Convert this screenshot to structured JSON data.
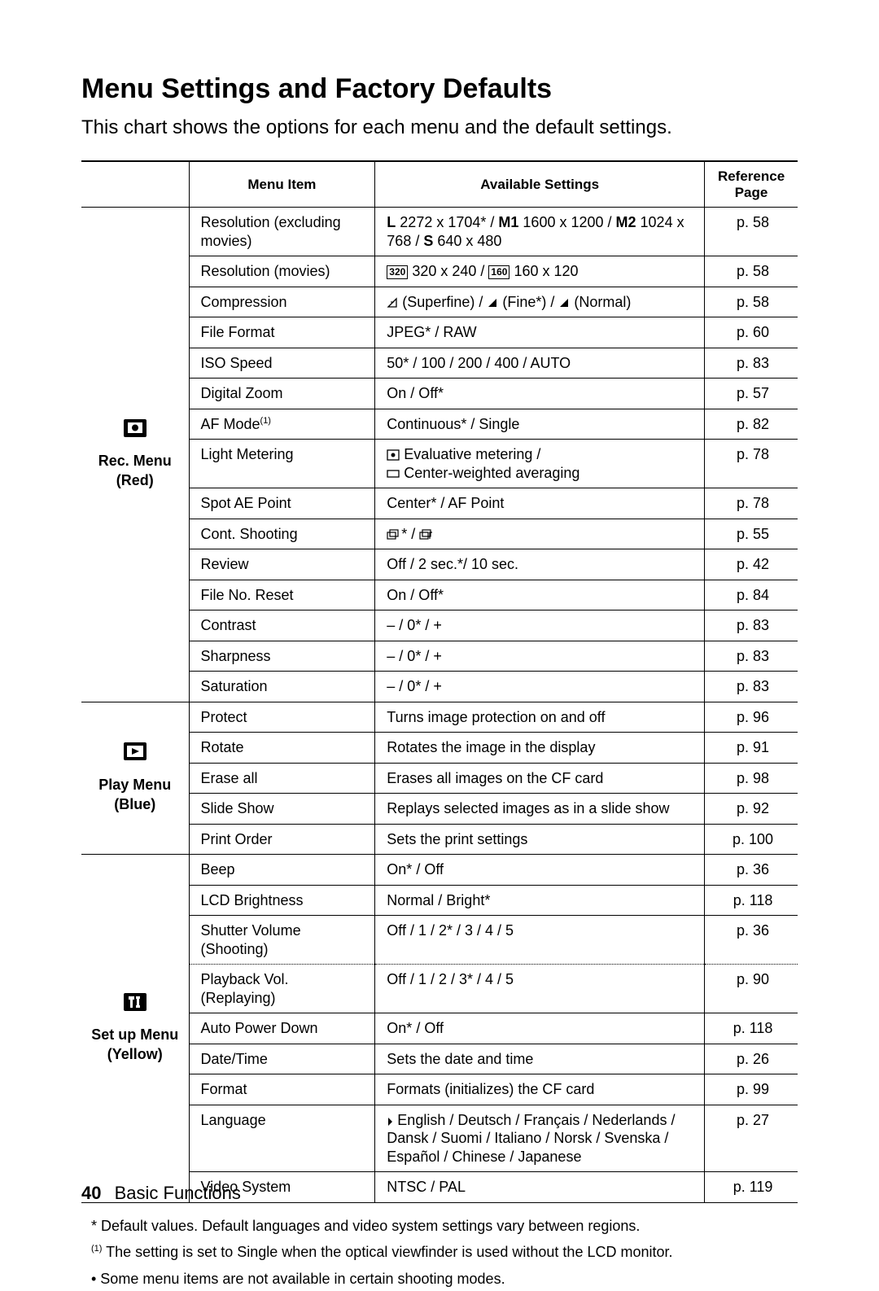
{
  "title": "Menu Settings and Factory Defaults",
  "subtitle": "This chart shows the options for each menu and the default settings.",
  "columns": {
    "blank": "",
    "menu_item": "Menu Item",
    "available": "Available Settings",
    "ref": "Reference Page"
  },
  "sections": [
    {
      "label_line1": "Rec. Menu",
      "label_line2": "(Red)",
      "icon": "camera",
      "rows": [
        {
          "item": "Resolution (excluding movies)",
          "setting_html": "<span class='res-bold'>L</span> 2272 x 1704* / <span class='res-bold'>M1</span> 1600 x 1200 / <span class='res-bold'>M2</span> 1024 x 768 / <span class='res-bold'>S</span> 640 x 480",
          "page": "p. 58",
          "border": "solid"
        },
        {
          "item": "Resolution (movies)",
          "setting_html": "<span class='small-box'>320</span> 320 x 240 / <span class='small-box'>160</span> 160 x 120",
          "page": "p. 58",
          "border": "solid"
        },
        {
          "item": "Compression",
          "setting_html": "<svg class='icon-inline' width='14' height='14'><path d='M2 12 L12 2 L12 12 Z' fill='none' stroke='#000' stroke-width='1.3'/><path d='M5 6 L9 6' stroke='#000' stroke-width='1'/></svg> (Superfine) / <svg class='icon-inline' width='14' height='14'><path d='M2 12 L12 2 L12 12 Z' fill='#000'/></svg> (Fine*) / <svg class='icon-inline' width='14' height='14'><path d='M2 12 L12 2 L12 12 Z' fill='#000'/></svg> (Normal)",
          "page": "p. 58",
          "border": "solid"
        },
        {
          "item": "File Format",
          "setting": "JPEG* / RAW",
          "page": "p. 60",
          "border": "solid"
        },
        {
          "item": "ISO Speed",
          "setting": "50* / 100 / 200 / 400 / AUTO",
          "page": "p. 83",
          "border": "solid"
        },
        {
          "item": "Digital Zoom",
          "setting": "On / Off*",
          "page": "p. 57",
          "border": "solid"
        },
        {
          "item_html": "AF Mode<span class='sup'>(1)</span>",
          "setting": "Continuous* / Single",
          "page": "p. 82",
          "border": "solid"
        },
        {
          "item": "Light Metering",
          "setting_html": "<svg class='icon-inline' width='16' height='14'><rect x='1' y='1' width='14' height='12' fill='none' stroke='#000' stroke-width='1.3'/><circle cx='8' cy='7' r='2.5' fill='#000'/></svg> Evaluative metering /<br><svg class='icon-inline' width='16' height='14'><rect x='1' y='3' width='14' height='8' fill='none' stroke='#000' stroke-width='1.3'/></svg> Center-weighted averaging",
          "page": "p. 78",
          "border": "solid"
        },
        {
          "item": "Spot AE Point",
          "setting": "Center* / AF Point",
          "page": "p. 78",
          "border": "solid"
        },
        {
          "item": "Cont. Shooting",
          "setting_html": "<svg class='icon-inline' width='18' height='14'><rect x='1' y='4' width='10' height='8' fill='none' stroke='#000' stroke-width='1.2'/><rect x='4' y='1' width='10' height='8' fill='none' stroke='#000' stroke-width='1.2'/></svg>* / <svg class='icon-inline' width='18' height='14'><rect x='1' y='4' width='10' height='8' fill='none' stroke='#000' stroke-width='1.2'/><rect x='4' y='1' width='10' height='8' fill='none' stroke='#000' stroke-width='1.2'/><path d='M13 12 L13 4 L16 4' fill='none' stroke='#000' stroke-width='1.2'/></svg>",
          "page": "p. 55",
          "border": "solid"
        },
        {
          "item": "Review",
          "setting": "Off / 2 sec.*/ 10 sec.",
          "page": "p. 42",
          "border": "solid"
        },
        {
          "item": "File No. Reset",
          "setting": "On / Off*",
          "page": "p. 84",
          "border": "solid"
        },
        {
          "item": "Contrast",
          "setting": "– / 0* / +",
          "page": "p. 83",
          "border": "solid"
        },
        {
          "item": "Sharpness",
          "setting": "– / 0* / +",
          "page": "p. 83",
          "border": "solid"
        },
        {
          "item": "Saturation",
          "setting": "– / 0* / +",
          "page": "p. 83",
          "border": "solid"
        }
      ]
    },
    {
      "label_line1": "Play Menu",
      "label_line2": "(Blue)",
      "icon": "play",
      "rows": [
        {
          "item": "Protect",
          "setting": "Turns image protection on and off",
          "page": "p. 96",
          "border": "solid"
        },
        {
          "item": "Rotate",
          "setting": "Rotates the image in the display",
          "page": "p. 91",
          "border": "solid"
        },
        {
          "item": "Erase all",
          "setting": "Erases all images on the CF card",
          "page": "p. 98",
          "border": "solid"
        },
        {
          "item": "Slide Show",
          "setting": "Replays selected images as in a slide show",
          "page": "p. 92",
          "border": "solid"
        },
        {
          "item": "Print Order",
          "setting": "Sets the print settings",
          "page": "p. 100",
          "border": "solid"
        }
      ]
    },
    {
      "label_line1": "Set up Menu",
      "label_line2": "(Yellow)",
      "icon": "tools",
      "rows": [
        {
          "item": "Beep",
          "setting": "On* / Off",
          "page": "p. 36",
          "border": "solid"
        },
        {
          "item": "LCD Brightness",
          "setting": "Normal / Bright*",
          "page": "p. 118",
          "border": "solid"
        },
        {
          "item": "Shutter Volume (Shooting)",
          "setting": "Off / 1 / 2* / 3 / 4 / 5",
          "page": "p. 36",
          "border": "dotted"
        },
        {
          "item": "Playback Vol. (Replaying)",
          "setting": "Off / 1 / 2 / 3* / 4 / 5",
          "page": "p. 90",
          "border": "solid"
        },
        {
          "item": "Auto Power Down",
          "setting": "On* / Off",
          "page": "p. 118",
          "border": "solid"
        },
        {
          "item": "Date/Time",
          "setting": "Sets the date and time",
          "page": "p. 26",
          "border": "solid"
        },
        {
          "item": "Format",
          "setting": "Formats (initializes) the CF card",
          "page": "p. 99",
          "border": "solid"
        },
        {
          "item": "Language",
          "setting_html": "<svg class='icon-inline' width='8' height='12'><path d='M2 1 L7 6 L2 11 Z' fill='#000'/></svg> English / Deutsch / Français / Nederlands / Dansk / Suomi / Italiano / Norsk / Svenska / Español / Chinese / Japanese",
          "page": "p. 27",
          "border": "solid"
        },
        {
          "item": "Video System",
          "setting": "NTSC / PAL",
          "page": "p. 119",
          "border": "end"
        }
      ]
    }
  ],
  "notes": [
    "* Default values. Default languages and video system settings vary between regions.",
    "(1) The setting is set to Single when the optical viewfinder is used without the LCD monitor.",
    "• Some menu items are not available in certain shooting modes."
  ],
  "footer": {
    "page_number": "40",
    "section": "Basic Functions"
  }
}
